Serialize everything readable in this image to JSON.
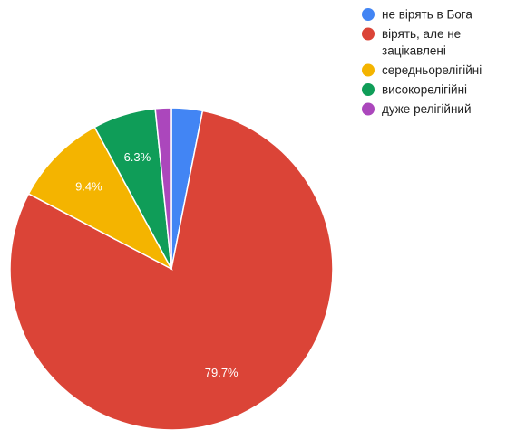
{
  "chart_data": {
    "type": "pie",
    "title": "",
    "legend_position": "top-right",
    "series": [
      {
        "name": "не вірять в Бога",
        "value": 3.1,
        "label": "",
        "color": "#4285f4"
      },
      {
        "name": "вірять, але не зацікавлені",
        "value": 79.7,
        "label": "79.7%",
        "color": "#db4437"
      },
      {
        "name": "середньорелігійні",
        "value": 9.4,
        "label": "9.4%",
        "color": "#f4b400"
      },
      {
        "name": "високорелігійні",
        "value": 6.3,
        "label": "6.3%",
        "color": "#0f9d58"
      },
      {
        "name": "дуже релігійний",
        "value": 1.6,
        "label": "",
        "color": "#ab47bc"
      }
    ],
    "legend_lines": [
      [
        "не вірять в Бога"
      ],
      [
        "вірять, але не",
        "зацікавлені"
      ],
      [
        "середньорелігійні"
      ],
      [
        "високорелігійні"
      ],
      [
        "дуже релігійний"
      ]
    ]
  }
}
